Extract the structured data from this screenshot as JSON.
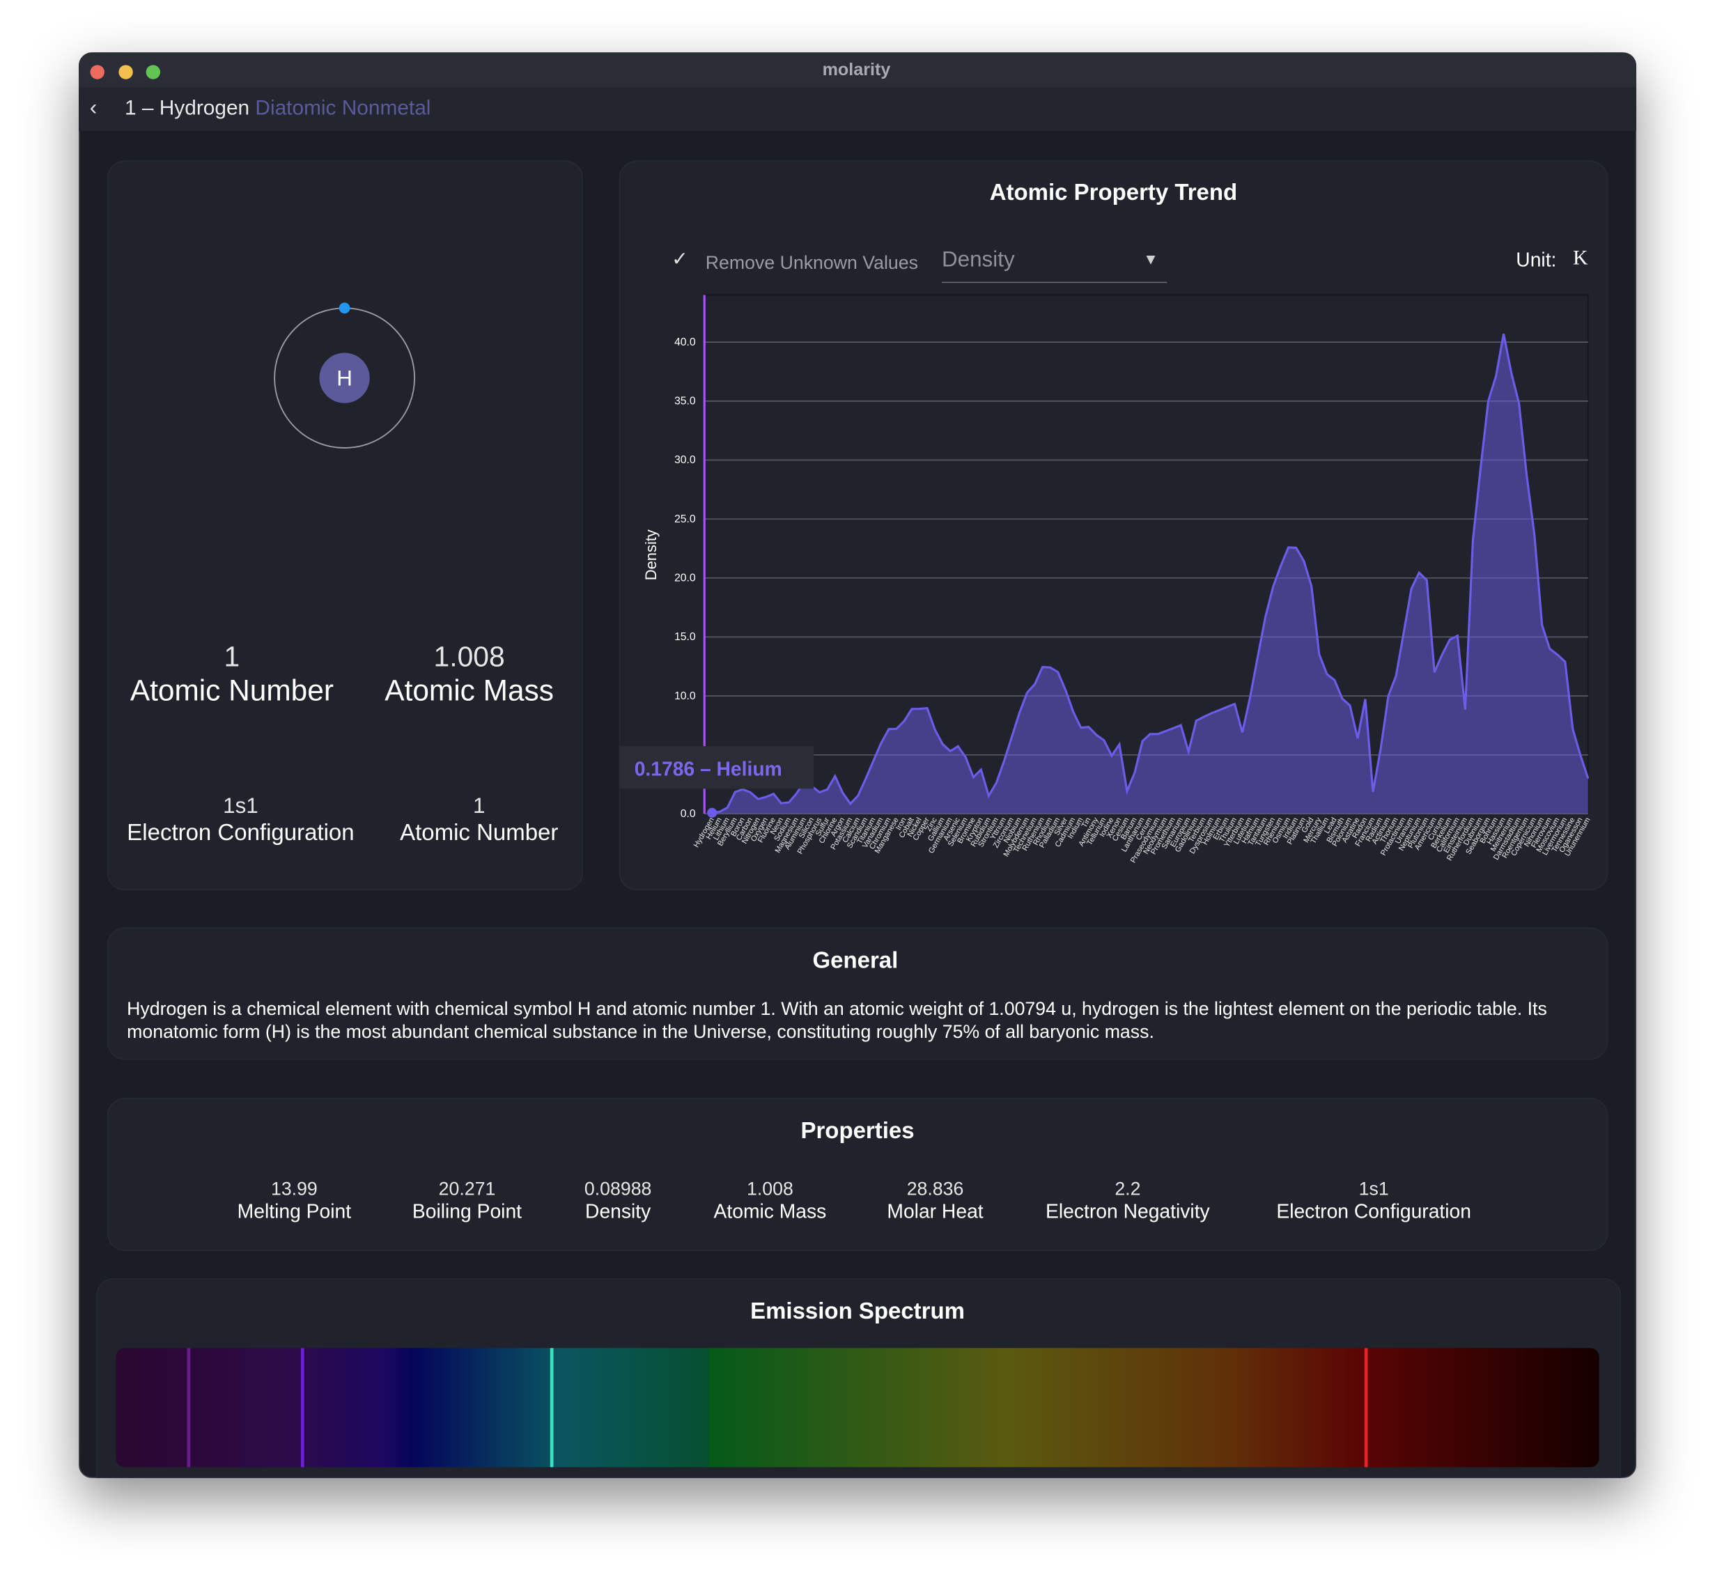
{
  "window": {
    "title": "molarity"
  },
  "header": {
    "title": "1 – Hydrogen",
    "category": "Diatomic Nonmetal"
  },
  "atom": {
    "symbol": "H"
  },
  "summary": [
    {
      "value": "1",
      "label": "Atomic Number"
    },
    {
      "value": "1.008",
      "label": "Atomic Mass"
    }
  ],
  "details": [
    {
      "value": "1s1",
      "label": "Electron Configuration"
    },
    {
      "value": "1",
      "label": "Atomic Number"
    }
  ],
  "chart_data": {
    "type": "area",
    "title": "Atomic Property Trend",
    "remove_unknown": "Remove Unknown Values",
    "property": "Density",
    "unit_label": "Unit:",
    "unit": "K",
    "ylabel": "Density",
    "tooltip": "0.1786 – Helium",
    "categories": [
      "Hydrogen",
      "Helium",
      "Lithium",
      "Beryllium",
      "Boron",
      "Carbon",
      "Nitrogen",
      "Oxygen",
      "Fluorine",
      "Neon",
      "Sodium",
      "Magnesium",
      "Aluminium",
      "Silicon",
      "Phosphorus",
      "Sulfur",
      "Chlorine",
      "Argon",
      "Potassium",
      "Calcium",
      "Scandium",
      "Titanium",
      "Vanadium",
      "Chromium",
      "Manganese",
      "Iron",
      "Cobalt",
      "Nickel",
      "Copper",
      "Zinc",
      "Gallium",
      "Germanium",
      "Arsenic",
      "Selenium",
      "Bromine",
      "Krypton",
      "Rubidium",
      "Strontium",
      "Yttrium",
      "Zirconium",
      "Niobium",
      "Molybdenum",
      "Technetium",
      "Ruthenium",
      "Rhodium",
      "Palladium",
      "Silver",
      "Cadmium",
      "Indium",
      "Tin",
      "Antimony",
      "Tellurium",
      "Iodine",
      "Xenon",
      "Cesium",
      "Barium",
      "Lanthanum",
      "Cerium",
      "Praseodymium",
      "Neodymium",
      "Promethium",
      "Samarium",
      "Europium",
      "Gadolinium",
      "Terbium",
      "Dysprosium",
      "Holmium",
      "Erbium",
      "Thulium",
      "Ytterbium",
      "Lutetium",
      "Hafnium",
      "Tantalum",
      "Tungsten",
      "Rhenium",
      "Osmium",
      "Iridium",
      "Platinum",
      "Gold",
      "Mercury",
      "Thallium",
      "Lead",
      "Bismuth",
      "Polonium",
      "Astatine",
      "Radon",
      "Francium",
      "Radium",
      "Actinium",
      "Thorium",
      "Protactinium",
      "Uranium",
      "Neptunium",
      "Plutonium",
      "Americium",
      "Curium",
      "Berkelium",
      "Californium",
      "Einsteinium",
      "Rutherfordium",
      "Dubnium",
      "Seaborgium",
      "Bohrium",
      "Hassium",
      "Meitnerium",
      "Darmstadtium",
      "Roentgenium",
      "Copernicium",
      "Nihonium",
      "Flerovium",
      "Moscovium",
      "Livermorium",
      "Tennessine",
      "Oganesson",
      "Ununennium"
    ],
    "values": [
      0.08988,
      0.1786,
      0.534,
      1.85,
      2.08,
      1.821,
      1.251,
      1.429,
      1.696,
      0.9002,
      0.968,
      1.738,
      2.7,
      2.329,
      1.823,
      2.07,
      3.2,
      1.784,
      0.862,
      1.55,
      2.985,
      4.506,
      6,
      7.19,
      7.21,
      7.874,
      8.9,
      8.908,
      8.96,
      7.14,
      5.91,
      5.323,
      5.727,
      4.81,
      3.1028,
      3.749,
      1.532,
      2.64,
      4.472,
      6.52,
      8.57,
      10.28,
      11,
      12.45,
      12.41,
      12.023,
      10.49,
      8.65,
      7.31,
      7.365,
      6.697,
      6.24,
      4.933,
      5.894,
      1.93,
      3.51,
      6.162,
      6.77,
      6.77,
      7.01,
      7.26,
      7.52,
      5.264,
      7.9,
      8.23,
      8.54,
      8.79,
      9.066,
      9.32,
      6.9,
      9.841,
      13.31,
      16.69,
      19.25,
      21.02,
      22.59,
      22.56,
      21.45,
      19.3,
      13.534,
      11.85,
      11.34,
      9.78,
      9.196,
      6.4,
      9.73,
      1.87,
      5.5,
      10,
      11.7,
      15.37,
      19.1,
      20.45,
      19.816,
      12,
      13.51,
      14.78,
      15.1,
      8.84,
      23.2,
      29.3,
      35,
      37.1,
      40.7,
      37.4,
      34.8,
      28.7,
      23.7,
      16,
      14,
      13.5,
      12.9,
      7.17,
      4.95,
      3
    ],
    "color": "#6c5ce7",
    "ylim": [
      0,
      44
    ],
    "yticks": [
      {
        "value": 0,
        "label": "0.0"
      },
      {
        "value": 5,
        "label": "5.0"
      },
      {
        "value": 10,
        "label": "10.0"
      },
      {
        "value": 15,
        "label": "15.0"
      },
      {
        "value": 20,
        "label": "20.0"
      },
      {
        "value": 25,
        "label": "25.0"
      },
      {
        "value": 30,
        "label": "30.0"
      },
      {
        "value": 35,
        "label": "35.0"
      },
      {
        "value": 40,
        "label": "40.0"
      }
    ],
    "grid": true
  },
  "general": {
    "title": "General",
    "text": "Hydrogen is a chemical element with chemical symbol H and atomic number 1. With an atomic weight of 1.00794 u, hydrogen is the lightest element on the periodic table. Its monatomic form (H) is the most abundant chemical substance in the Universe, constituting roughly 75% of all baryonic mass."
  },
  "properties": {
    "title": "Properties",
    "items": [
      {
        "value": "13.99",
        "label": "Melting Point"
      },
      {
        "value": "20.271",
        "label": "Boiling Point"
      },
      {
        "value": "0.08988",
        "label": "Density"
      },
      {
        "value": "1.008",
        "label": "Atomic Mass"
      },
      {
        "value": "28.836",
        "label": "Molar Heat"
      },
      {
        "value": "2.2",
        "label": "Electron Negativity"
      },
      {
        "value": "1s1",
        "label": "Electron Configuration"
      }
    ]
  },
  "spectrum": {
    "title": "Emission Spectrum",
    "range": [
      395,
      705
    ],
    "lines": [
      410.2,
      434.0,
      486.1,
      656.3
    ],
    "line_colors": [
      "#6a1a8a",
      "#6a22d0",
      "#3ae0c0",
      "#e8222a"
    ]
  }
}
